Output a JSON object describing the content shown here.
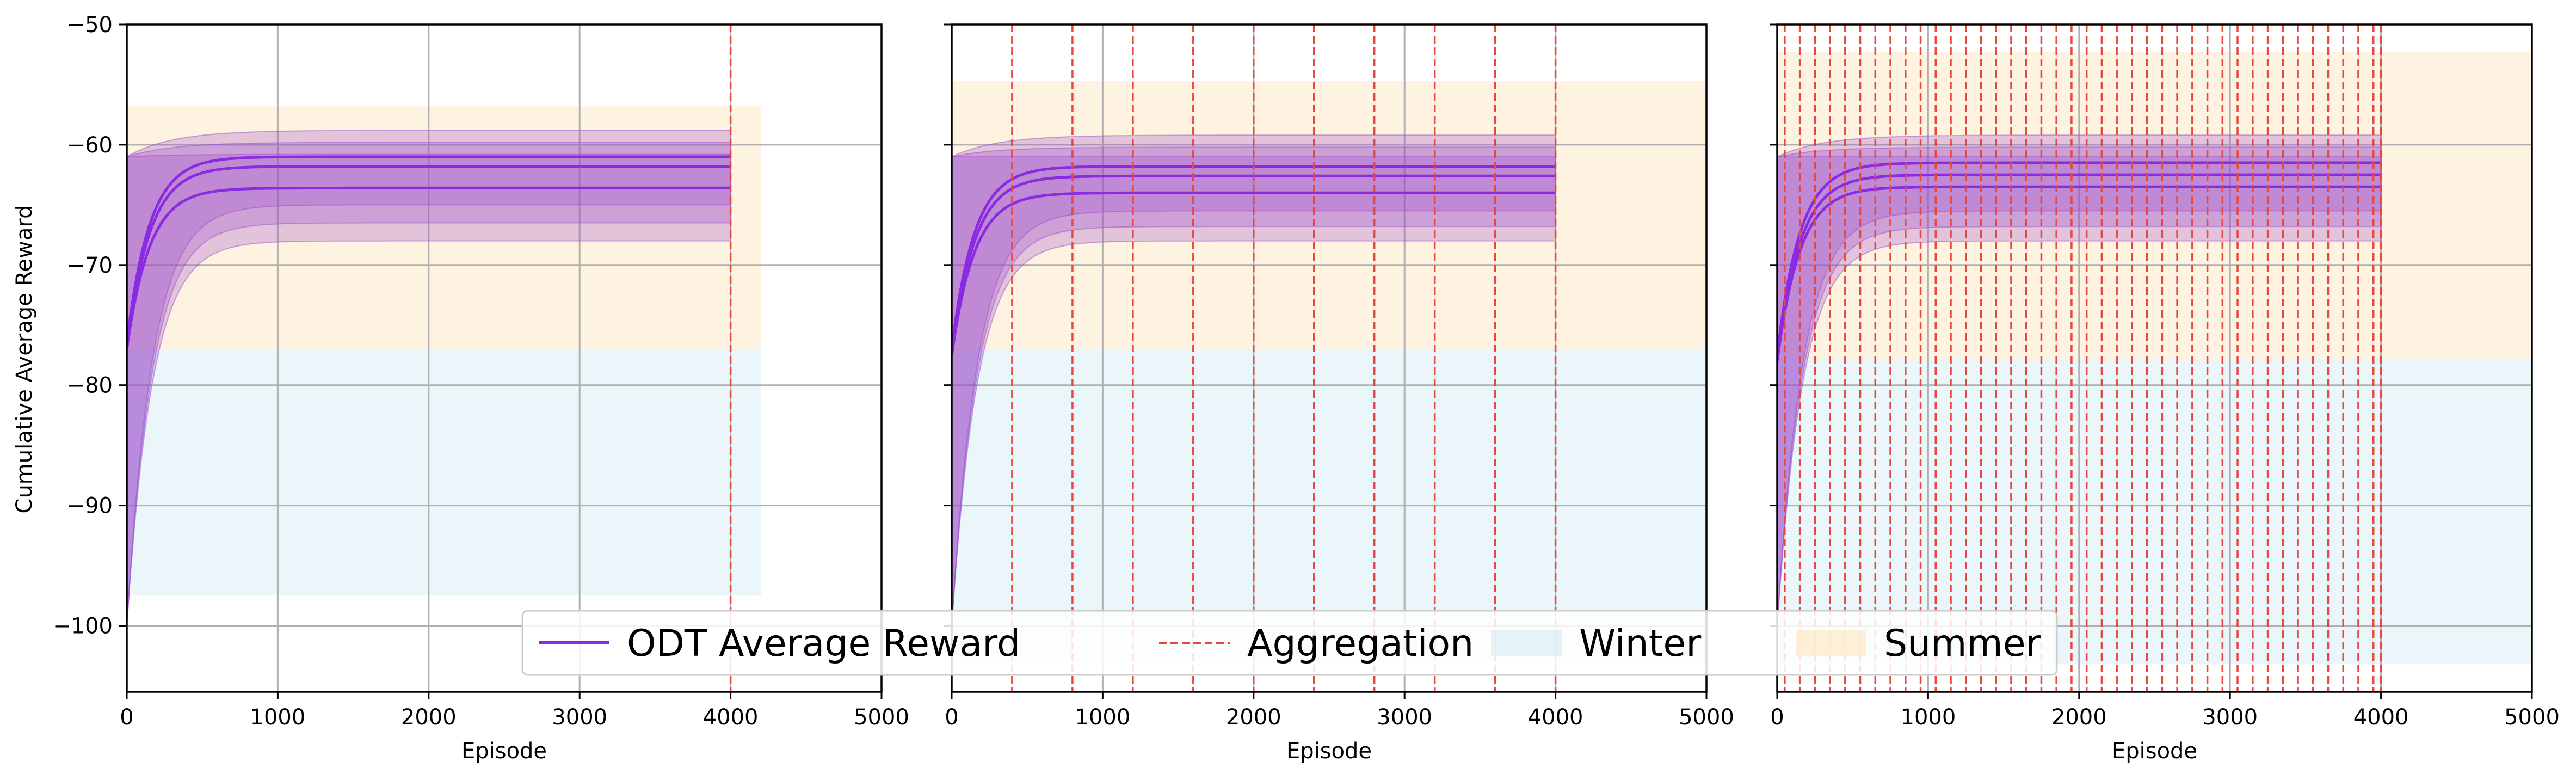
{
  "chart_data": {
    "type": "line",
    "shared_y": true,
    "ylabel": "Cumulative Average Reward",
    "ylim": [
      -105.5,
      -50
    ],
    "yticks": [
      -50,
      -60,
      -70,
      -80,
      -90,
      -100
    ],
    "ytick_labels": [
      "−50",
      "−60",
      "−70",
      "−80",
      "−90",
      "−100"
    ],
    "colors": {
      "reward": "#8a2be2",
      "band": "#9c4dcc",
      "aggregation": "#e8473f",
      "winter": "#d9eef4",
      "summer": "#fde8c7",
      "grid": "#b0b0b0"
    },
    "legend": {
      "placement": "lower center",
      "entries": [
        {
          "label": "ODT Average Reward",
          "kind": "line"
        },
        {
          "label": "Aggregation",
          "kind": "dashed"
        },
        {
          "label": "Winter",
          "kind": "patch"
        },
        {
          "label": "Summer",
          "kind": "patch"
        }
      ]
    },
    "panels": [
      {
        "xlabel": "Episode",
        "xlim": [
          0,
          5000
        ],
        "xticks": [
          0,
          1000,
          2000,
          3000,
          4000,
          5000
        ],
        "xtick_labels": [
          "0",
          "1000",
          "2000",
          "3000",
          "4000",
          "5000"
        ],
        "episodes_end": 4000,
        "winter": {
          "x": [
            0,
            4200
          ],
          "y": [
            -97.5,
            -77
          ]
        },
        "summer": {
          "x": [
            0,
            4200
          ],
          "y": [
            -77,
            -56.8
          ]
        },
        "aggregation_x": [
          4000
        ],
        "curves": [
          {
            "start": -76.5,
            "final": -61
          },
          {
            "start": -77,
            "final": -61.8
          },
          {
            "start": -77,
            "final": -63.6
          }
        ],
        "bands": [
          {
            "upper_final": -58.8,
            "lower_final": -68
          },
          {
            "upper_final": -59.8,
            "lower_final": -66.5
          },
          {
            "upper_final": -60.8,
            "lower_final": -65
          }
        ]
      },
      {
        "xlabel": "Episode",
        "xlim": [
          0,
          5000
        ],
        "xticks": [
          0,
          1000,
          2000,
          3000,
          4000,
          5000
        ],
        "xtick_labels": [
          "0",
          "1000",
          "2000",
          "3000",
          "4000",
          "5000"
        ],
        "episodes_end": 4000,
        "winter": {
          "x": [
            0,
            5000
          ],
          "y": [
            -103,
            -77
          ]
        },
        "summer": {
          "x": [
            0,
            5000
          ],
          "y": [
            -77,
            -54.7
          ]
        },
        "aggregation_x": [
          400,
          800,
          1200,
          1600,
          2000,
          2400,
          2800,
          3200,
          3600,
          4000
        ],
        "curves": [
          {
            "start": -77,
            "final": -61.8
          },
          {
            "start": -77.5,
            "final": -62.6
          },
          {
            "start": -77.5,
            "final": -64
          }
        ],
        "bands": [
          {
            "upper_final": -59.2,
            "lower_final": -68
          },
          {
            "upper_final": -60.2,
            "lower_final": -66.8
          },
          {
            "upper_final": -61,
            "lower_final": -65.5
          }
        ]
      },
      {
        "xlabel": "Episode",
        "xlim": [
          0,
          5000
        ],
        "xticks": [
          0,
          1000,
          2000,
          3000,
          4000,
          5000
        ],
        "xtick_labels": [
          "0",
          "1000",
          "2000",
          "3000",
          "4000",
          "5000"
        ],
        "episodes_end": 4000,
        "winter": {
          "x": [
            0,
            5000
          ],
          "y": [
            -103.2,
            -77.8
          ]
        },
        "summer": {
          "x": [
            0,
            5000
          ],
          "y": [
            -77.8,
            -52.3
          ]
        },
        "aggregation_x": [
          50,
          150,
          250,
          350,
          450,
          550,
          650,
          750,
          850,
          950,
          1050,
          1150,
          1250,
          1350,
          1450,
          1550,
          1650,
          1750,
          1850,
          1950,
          2050,
          2150,
          2250,
          2350,
          2450,
          2550,
          2650,
          2750,
          2850,
          2950,
          3050,
          3150,
          3250,
          3350,
          3450,
          3550,
          3650,
          3750,
          3850,
          3950,
          4000
        ],
        "curves": [
          {
            "start": -77.5,
            "final": -61.5
          },
          {
            "start": -78,
            "final": -62.5
          },
          {
            "start": -78,
            "final": -63.5
          }
        ],
        "bands": [
          {
            "upper_final": -59.2,
            "lower_final": -68
          },
          {
            "upper_final": -60.2,
            "lower_final": -66.8
          },
          {
            "upper_final": -61,
            "lower_final": -65.5
          }
        ]
      }
    ]
  }
}
